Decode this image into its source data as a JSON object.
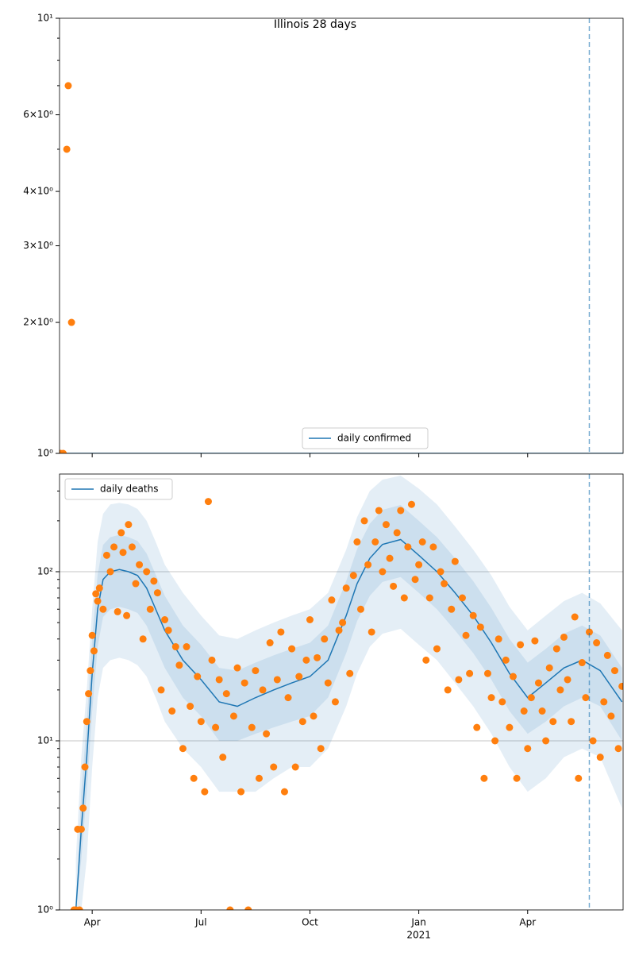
{
  "chart_data": [
    {
      "type": "line",
      "title": "Illinois 28 days",
      "log_y": true,
      "grid": false,
      "legend": "lower center",
      "xlim": [
        2.1,
        17.63
      ],
      "ylim": [
        1,
        10
      ],
      "yticks": [
        {
          "value": 1,
          "label": "10⁰"
        },
        {
          "value": 2,
          "label": "2×10⁰"
        },
        {
          "value": 3,
          "label": "3×10⁰"
        },
        {
          "value": 4,
          "label": "4×10⁰"
        },
        {
          "value": 6,
          "label": "6×10⁰"
        },
        {
          "value": 10,
          "label": "10¹"
        }
      ],
      "yminorticks": [
        5,
        7,
        8,
        9
      ],
      "vline_x": 16.7,
      "series": [
        {
          "name": "daily confirmed",
          "color": "#1f77b4",
          "x": [
            2.1,
            17.63
          ],
          "values": [
            1,
            1
          ]
        }
      ],
      "points": {
        "color": "#ff7f0e",
        "x": [
          2.13,
          2.2,
          2.3,
          2.34,
          2.43
        ],
        "values": [
          1,
          1,
          5,
          7,
          2
        ]
      }
    },
    {
      "type": "line",
      "log_y": true,
      "grid": true,
      "legend": "upper left",
      "xlim": [
        2.1,
        17.63
      ],
      "ylim": [
        1,
        378
      ],
      "xticks": [
        {
          "value": 3,
          "label": "Apr"
        },
        {
          "value": 6,
          "label": "Jul"
        },
        {
          "value": 9,
          "label": "Oct"
        },
        {
          "value": 12,
          "label": "Jan"
        },
        {
          "value": 15,
          "label": "Apr"
        }
      ],
      "year_label": {
        "value": 12,
        "label": "2021"
      },
      "yticks": [
        {
          "value": 1,
          "label": "10⁰"
        },
        {
          "value": 10,
          "label": "10¹"
        },
        {
          "value": 100,
          "label": "10²"
        }
      ],
      "yminorticks": [
        2,
        3,
        4,
        5,
        6,
        7,
        8,
        9,
        20,
        30,
        40,
        50,
        60,
        70,
        80,
        90,
        200,
        300
      ],
      "vline_x": 16.7,
      "series": [
        {
          "name": "daily deaths",
          "color": "#1f77b4",
          "x": [
            2.55,
            2.7,
            2.85,
            3.0,
            3.15,
            3.3,
            3.5,
            3.75,
            4.0,
            4.25,
            4.5,
            4.75,
            5.0,
            5.5,
            6.0,
            6.5,
            7.0,
            7.5,
            8.0,
            8.5,
            9.0,
            9.5,
            10.0,
            10.3,
            10.65,
            11.0,
            11.5,
            12.0,
            12.5,
            13.0,
            13.5,
            14.0,
            14.5,
            15.0,
            15.5,
            16.0,
            16.5,
            17.0,
            17.6
          ],
          "values": [
            1,
            3,
            8,
            25,
            60,
            90,
            100,
            103,
            100,
            95,
            80,
            60,
            45,
            30,
            23,
            17,
            16,
            18,
            20,
            22,
            24,
            30,
            55,
            85,
            120,
            145,
            155,
            125,
            100,
            75,
            55,
            38,
            25,
            18,
            22,
            27,
            30,
            26,
            17
          ]
        }
      ],
      "bands": [
        {
          "lower": [
            1,
            1,
            2,
            7,
            18,
            27,
            30,
            31,
            30,
            28,
            24,
            18,
            13,
            9,
            7,
            5,
            5,
            5,
            6,
            7,
            7,
            9,
            16,
            25,
            36,
            43,
            46,
            37,
            30,
            22,
            16,
            11,
            7,
            5,
            6,
            8,
            9,
            8,
            4
          ],
          "upper": [
            2,
            8,
            20,
            60,
            150,
            220,
            250,
            255,
            250,
            235,
            200,
            150,
            110,
            75,
            55,
            42,
            40,
            45,
            50,
            55,
            60,
            75,
            135,
            210,
            300,
            350,
            370,
            310,
            250,
            185,
            135,
            95,
            62,
            45,
            55,
            67,
            75,
            65,
            45
          ]
        },
        {
          "lower": [
            1,
            2,
            5,
            15,
            36,
            54,
            60,
            62,
            60,
            57,
            48,
            36,
            27,
            18,
            14,
            10,
            10,
            11,
            12,
            13,
            14,
            18,
            33,
            51,
            72,
            87,
            93,
            75,
            60,
            45,
            33,
            23,
            15,
            11,
            13,
            16,
            18,
            16,
            10
          ],
          "upper": [
            1,
            5,
            13,
            40,
            96,
            144,
            160,
            165,
            160,
            152,
            128,
            96,
            72,
            48,
            37,
            27,
            26,
            29,
            32,
            35,
            38,
            48,
            88,
            136,
            192,
            232,
            248,
            200,
            160,
            120,
            88,
            61,
            40,
            29,
            35,
            43,
            48,
            42,
            27
          ]
        }
      ],
      "points": {
        "color": "#ff7f0e",
        "x": [
          2.5,
          2.55,
          2.6,
          2.65,
          2.7,
          2.75,
          2.8,
          2.85,
          2.9,
          2.95,
          3.0,
          3.05,
          3.1,
          3.15,
          3.2,
          3.3,
          3.4,
          3.5,
          3.6,
          3.7,
          3.8,
          3.85,
          3.95,
          4.0,
          4.1,
          4.2,
          4.3,
          4.4,
          4.5,
          4.6,
          4.7,
          4.8,
          4.9,
          5.0,
          5.1,
          5.2,
          5.3,
          5.4,
          5.5,
          5.6,
          5.7,
          5.8,
          5.9,
          6.0,
          6.1,
          6.2,
          6.3,
          6.4,
          6.5,
          6.6,
          6.7,
          6.8,
          6.9,
          7.0,
          7.1,
          7.2,
          7.3,
          7.4,
          7.5,
          7.6,
          7.7,
          7.8,
          7.9,
          8.0,
          8.1,
          8.2,
          8.3,
          8.4,
          8.5,
          8.6,
          8.7,
          8.8,
          8.9,
          9.0,
          9.1,
          9.2,
          9.3,
          9.4,
          9.5,
          9.6,
          9.7,
          9.8,
          9.9,
          10.0,
          10.1,
          10.2,
          10.3,
          10.4,
          10.5,
          10.6,
          10.7,
          10.8,
          10.9,
          11.0,
          11.1,
          11.2,
          11.3,
          11.4,
          11.5,
          11.6,
          11.7,
          11.8,
          11.9,
          12.0,
          12.1,
          12.2,
          12.3,
          12.4,
          12.5,
          12.6,
          12.7,
          12.8,
          12.9,
          13.0,
          13.1,
          13.2,
          13.3,
          13.4,
          13.5,
          13.6,
          13.7,
          13.8,
          13.9,
          14.0,
          14.1,
          14.2,
          14.3,
          14.4,
          14.5,
          14.6,
          14.7,
          14.8,
          14.9,
          15.0,
          15.1,
          15.2,
          15.3,
          15.4,
          15.5,
          15.6,
          15.7,
          15.8,
          15.9,
          16.0,
          16.1,
          16.2,
          16.3,
          16.4,
          16.5,
          16.6,
          16.7,
          16.8,
          16.9,
          17.0,
          17.1,
          17.2,
          17.3,
          17.4,
          17.5,
          17.6
        ],
        "values": [
          1,
          1,
          3,
          1,
          3,
          4,
          7,
          13,
          19,
          26,
          42,
          34,
          74,
          67,
          80,
          60,
          125,
          100,
          140,
          58,
          170,
          130,
          55,
          190,
          140,
          85,
          110,
          40,
          100,
          60,
          88,
          75,
          20,
          52,
          45,
          15,
          36,
          28,
          9,
          36,
          16,
          6,
          24,
          13,
          5,
          260,
          30,
          12,
          23,
          8,
          19,
          1,
          14,
          27,
          5,
          22,
          1,
          12,
          26,
          6,
          20,
          11,
          38,
          7,
          23,
          44,
          5,
          18,
          35,
          7,
          24,
          13,
          30,
          52,
          14,
          31,
          9,
          40,
          22,
          68,
          17,
          45,
          50,
          80,
          25,
          95,
          150,
          60,
          200,
          110,
          44,
          150,
          230,
          100,
          190,
          120,
          82,
          170,
          230,
          70,
          140,
          250,
          90,
          110,
          150,
          30,
          70,
          140,
          35,
          100,
          85,
          20,
          60,
          115,
          23,
          70,
          42,
          25,
          55,
          12,
          47,
          6,
          25,
          18,
          10,
          40,
          17,
          30,
          12,
          24,
          6,
          37,
          15,
          9,
          18,
          39,
          22,
          15,
          10,
          27,
          13,
          35,
          20,
          41,
          23,
          13,
          54,
          6,
          29,
          18,
          44,
          10,
          38,
          8,
          17,
          32,
          14,
          26,
          9,
          21
        ]
      }
    }
  ]
}
